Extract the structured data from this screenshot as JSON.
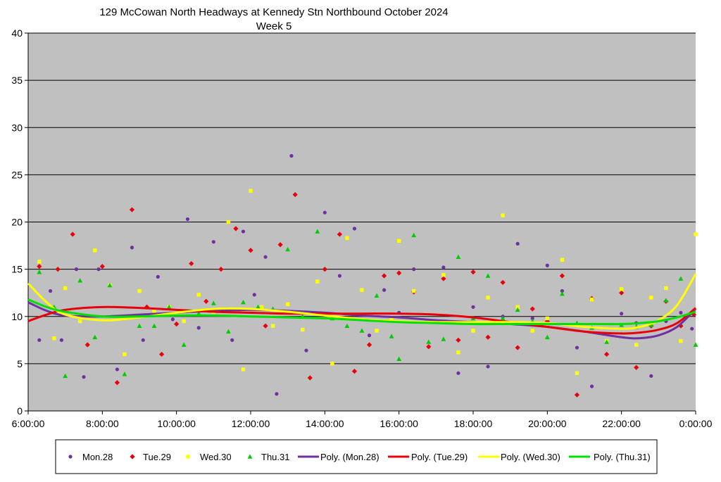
{
  "chart_data": {
    "type": "scatter",
    "title": "129 McCowan North Headways at Kennedy Stn Northbound October 2024",
    "subtitle": "Week 5",
    "xlabel": "",
    "ylabel": "",
    "x_tick_labels": [
      "6:00:00",
      "8:00:00",
      "10:00:00",
      "12:00:00",
      "14:00:00",
      "16:00:00",
      "18:00:00",
      "20:00:00",
      "22:00:00",
      "0:00:00"
    ],
    "y_tick_labels": [
      "0",
      "5",
      "10",
      "15",
      "20",
      "25",
      "30",
      "35",
      "40"
    ],
    "xlim_hours": [
      6,
      24
    ],
    "ylim": [
      0,
      40
    ],
    "grid": "horizontal",
    "plot_background": "#c0c0c0",
    "legend_position": "bottom",
    "series": [
      {
        "name": "Mon.28",
        "color": "#7030a0",
        "marker": "circle",
        "x": [
          6.3,
          6.6,
          6.9,
          7.3,
          7.5,
          7.9,
          8.4,
          8.8,
          9.1,
          9.5,
          9.9,
          10.3,
          10.6,
          11.0,
          11.5,
          11.8,
          12.1,
          12.4,
          12.7,
          13.1,
          13.5,
          14.0,
          14.4,
          14.8,
          15.2,
          15.6,
          16.0,
          16.4,
          16.8,
          17.2,
          17.6,
          18.0,
          18.4,
          18.8,
          19.2,
          19.6,
          20.0,
          20.4,
          20.8,
          21.2,
          21.6,
          22.0,
          22.4,
          22.8,
          23.2,
          23.6,
          23.9
        ],
        "y": [
          7.5,
          12.7,
          7.5,
          15.0,
          3.6,
          15.0,
          4.4,
          17.3,
          7.5,
          14.2,
          9.7,
          20.3,
          8.8,
          17.9,
          7.5,
          19.0,
          12.3,
          16.3,
          1.8,
          27.0,
          6.4,
          21.0,
          14.3,
          19.3,
          8.0,
          12.8,
          10.4,
          15.0,
          6.8,
          15.2,
          4.0,
          11.0,
          4.7,
          10.0,
          17.7,
          9.8,
          15.4,
          12.7,
          6.7,
          2.6,
          7.3,
          10.3,
          9.3,
          3.7,
          9.5,
          10.4,
          8.7
        ]
      },
      {
        "name": "Tue.29",
        "color": "#e8000b",
        "marker": "diamond",
        "x": [
          6.3,
          6.8,
          7.2,
          7.6,
          8.0,
          8.4,
          8.8,
          9.2,
          9.6,
          10.0,
          10.4,
          10.8,
          11.2,
          11.6,
          12.0,
          12.4,
          12.8,
          13.2,
          13.6,
          14.0,
          14.4,
          14.8,
          15.2,
          15.6,
          16.0,
          16.4,
          16.8,
          17.2,
          17.6,
          18.0,
          18.4,
          18.8,
          19.2,
          19.6,
          20.0,
          20.4,
          20.8,
          21.2,
          21.6,
          22.0,
          22.4,
          22.8,
          23.2,
          23.6,
          23.95
        ],
        "y": [
          15.3,
          15.0,
          18.7,
          7.0,
          15.3,
          3.0,
          21.3,
          11.0,
          6.0,
          9.2,
          15.6,
          11.6,
          15.0,
          19.3,
          17.0,
          9.0,
          17.6,
          22.9,
          3.5,
          15.0,
          18.7,
          4.2,
          7.0,
          14.3,
          14.6,
          12.6,
          6.8,
          14.0,
          7.5,
          14.7,
          7.8,
          13.6,
          6.7,
          10.8,
          9.5,
          14.3,
          1.7,
          11.9,
          6.0,
          12.5,
          4.6,
          9.0,
          11.6,
          9.0,
          10.2
        ]
      },
      {
        "name": "Wed.30",
        "color": "#ffff00",
        "marker": "square",
        "x": [
          6.3,
          6.7,
          7.0,
          7.4,
          7.8,
          8.2,
          8.6,
          9.0,
          9.4,
          9.8,
          10.2,
          10.6,
          11.0,
          11.4,
          11.8,
          12.0,
          12.3,
          12.6,
          13.0,
          13.4,
          13.8,
          14.2,
          14.6,
          15.0,
          15.4,
          15.8,
          16.0,
          16.4,
          16.8,
          17.2,
          17.6,
          18.0,
          18.4,
          18.8,
          19.2,
          19.6,
          20.0,
          20.4,
          20.8,
          21.2,
          21.6,
          22.0,
          22.4,
          22.8,
          23.2,
          23.6,
          24.0
        ],
        "y": [
          15.8,
          7.7,
          13.0,
          9.5,
          17.0,
          13.3,
          6.0,
          12.7,
          10.5,
          11.0,
          9.5,
          12.3,
          10.5,
          20.0,
          4.4,
          23.3,
          11.0,
          9.0,
          11.3,
          8.6,
          13.7,
          5.0,
          18.3,
          12.8,
          8.5,
          9.8,
          18.0,
          12.7,
          9.4,
          14.4,
          6.2,
          8.5,
          12.0,
          20.7,
          11.0,
          8.5,
          9.8,
          16.0,
          4.0,
          11.8,
          7.4,
          12.9,
          7.0,
          12.0,
          13.0,
          7.4,
          18.7
        ]
      },
      {
        "name": "Thu.31",
        "color": "#00cc00",
        "marker": "triangle",
        "x": [
          6.3,
          6.7,
          7.0,
          7.4,
          7.8,
          8.2,
          8.6,
          9.0,
          9.4,
          9.8,
          10.2,
          10.6,
          11.0,
          11.4,
          11.8,
          12.2,
          12.6,
          13.0,
          13.4,
          13.8,
          14.2,
          14.6,
          15.0,
          15.4,
          15.8,
          16.0,
          16.4,
          16.8,
          17.2,
          17.6,
          18.0,
          18.4,
          18.8,
          19.2,
          19.6,
          20.0,
          20.4,
          20.8,
          21.2,
          21.6,
          22.0,
          22.4,
          22.8,
          23.2,
          23.6,
          24.0
        ],
        "y": [
          14.7,
          11.0,
          3.7,
          13.8,
          7.8,
          13.3,
          3.9,
          9.0,
          9.0,
          11.0,
          7.0,
          10.3,
          11.4,
          8.4,
          11.5,
          11.0,
          10.8,
          17.1,
          10.0,
          19.0,
          9.8,
          9.0,
          8.5,
          12.2,
          7.9,
          5.5,
          18.6,
          7.3,
          7.6,
          16.3,
          9.8,
          14.3,
          9.8,
          10.7,
          9.5,
          7.8,
          12.4,
          9.3,
          8.8,
          7.3,
          9.1,
          8.9,
          9.1,
          11.7,
          14.0,
          7.0
        ]
      }
    ],
    "trendlines": [
      {
        "name": "Poly. (Mon.28)",
        "color": "#7030a0",
        "x": [
          6,
          6.5,
          7,
          8,
          9,
          10,
          11,
          12,
          13,
          14,
          15,
          16,
          17,
          18,
          19,
          20,
          21,
          22,
          22.5,
          23,
          23.5,
          24
        ],
        "y": [
          11.5,
          10.6,
          10.1,
          10.0,
          10.2,
          10.4,
          10.6,
          10.7,
          10.6,
          10.4,
          10.1,
          9.9,
          9.6,
          9.4,
          9.2,
          8.9,
          8.4,
          7.8,
          7.7,
          8.0,
          8.9,
          10.8
        ]
      },
      {
        "name": "Poly. (Tue.29)",
        "color": "#e8000b",
        "x": [
          6,
          6.5,
          7,
          8,
          9,
          10,
          11,
          12,
          13,
          14,
          15,
          16,
          17,
          18,
          19,
          20,
          21,
          22,
          22.5,
          23,
          23.5,
          24
        ],
        "y": [
          9.5,
          10.2,
          10.7,
          11.0,
          10.9,
          10.7,
          10.5,
          10.4,
          10.3,
          10.3,
          10.3,
          10.3,
          10.2,
          9.9,
          9.4,
          8.9,
          8.4,
          8.2,
          8.3,
          8.6,
          9.3,
          10.9
        ]
      },
      {
        "name": "Poly. (Wed.30)",
        "color": "#ffff00",
        "x": [
          6,
          6.5,
          7,
          8,
          9,
          10,
          11,
          12,
          13,
          14,
          15,
          16,
          17,
          18,
          19,
          20,
          21,
          22,
          22.5,
          23,
          23.5,
          24
        ],
        "y": [
          13.5,
          11.5,
          10.2,
          9.6,
          9.9,
          10.4,
          10.8,
          10.8,
          10.5,
          10.1,
          9.7,
          9.5,
          9.4,
          9.4,
          9.4,
          9.3,
          8.9,
          8.7,
          8.9,
          9.6,
          11.2,
          14.5
        ]
      },
      {
        "name": "Poly. (Thu.31)",
        "color": "#00e000",
        "x": [
          6,
          6.5,
          7,
          8,
          9,
          10,
          11,
          12,
          13,
          14,
          15,
          16,
          17,
          18,
          19,
          20,
          21,
          22,
          22.5,
          23,
          23.5,
          24
        ],
        "y": [
          11.8,
          11.0,
          10.5,
          10.0,
          10.0,
          10.1,
          10.1,
          10.0,
          9.9,
          9.8,
          9.6,
          9.4,
          9.3,
          9.2,
          9.2,
          9.2,
          9.2,
          9.2,
          9.3,
          9.5,
          9.9,
          10.5
        ]
      }
    ]
  }
}
